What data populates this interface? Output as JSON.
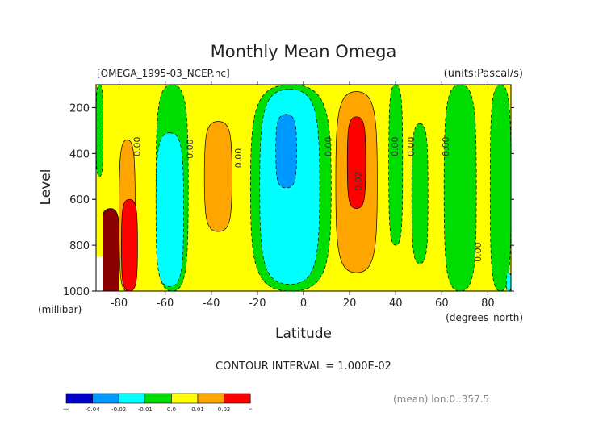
{
  "chart_data": {
    "type": "heatmap",
    "title": "Monthly Mean Omega",
    "file_label": "[OMEGA_1995-03_NCEP.nc]",
    "units_label": "(units:Pascal/s)",
    "xlabel": "Latitude",
    "x_units": "(degrees_north)",
    "ylabel": "Level",
    "y_units": "(millibar)",
    "x_ticks": [
      -80,
      -60,
      -40,
      -20,
      0,
      20,
      40,
      60,
      80
    ],
    "x_tick_labels": [
      "-80",
      "-60",
      "-40",
      "-20",
      "0",
      "20",
      "40",
      "60",
      "80"
    ],
    "y_ticks": [
      200,
      400,
      600,
      800,
      1000
    ],
    "y_tick_labels": [
      "200",
      "400",
      "600",
      "800",
      "1000"
    ],
    "xlim": [
      -90,
      90
    ],
    "ylim": [
      100,
      1000
    ],
    "y_inverted": true,
    "contour_interval_text": "CONTOUR INTERVAL = 1.000E-02",
    "mean_text": "(mean) lon:0..357.5",
    "background_level": "0.0 to 0.01",
    "regions": [
      {
        "level": "0.0 to 0.01",
        "color": "#ffff00",
        "label": "",
        "lat": [
          -90,
          90
        ],
        "lev": [
          100,
          1000
        ]
      },
      {
        "level": "-0.01 to 0.0",
        "color": "#00dd00",
        "label": "",
        "lat": [
          -90,
          -87
        ],
        "lev": [
          100,
          500
        ]
      },
      {
        "level": "0.01 to 0.02",
        "color": "#ffa500",
        "label": "",
        "lat": [
          -80,
          -73
        ],
        "lev": [
          340,
          1000
        ]
      },
      {
        "level": "0.01 to 0.02",
        "color": "#ffa500",
        "label": "",
        "lat": [
          -43,
          -31
        ],
        "lev": [
          260,
          740
        ]
      },
      {
        "level": "-0.01 to 0.0",
        "color": "#00dd00",
        "label": "",
        "lat": [
          -64,
          -50
        ],
        "lev": [
          100,
          1000
        ]
      },
      {
        "level": "-0.02 to -0.01",
        "color": "#00ffff",
        "label": "",
        "lat": [
          -64,
          -52
        ],
        "lev": [
          310,
          980
        ]
      },
      {
        "level": "-0.01 to 0.0",
        "color": "#00dd00",
        "label": "",
        "lat": [
          -23,
          12
        ],
        "lev": [
          100,
          1000
        ]
      },
      {
        "level": "-0.02 to -0.01",
        "color": "#00ffff",
        "label": "",
        "lat": [
          -19,
          7
        ],
        "lev": [
          120,
          970
        ]
      },
      {
        "level": "-0.03 to -0.02",
        "color": "#0099ff",
        "label": "",
        "lat": [
          -12,
          -3
        ],
        "lev": [
          230,
          550
        ]
      },
      {
        "level": "0.01 to 0.02",
        "color": "#ffa500",
        "label": "",
        "lat": [
          14,
          32
        ],
        "lev": [
          130,
          920
        ]
      },
      {
        "level": "0.02 to 0.03",
        "color": "#ff0000",
        "label": "0.02",
        "lat": [
          19,
          27
        ],
        "lev": [
          240,
          640
        ]
      },
      {
        "level": "-0.01 to 0.0",
        "color": "#00dd00",
        "label": "",
        "lat": [
          37,
          43
        ],
        "lev": [
          100,
          800
        ]
      },
      {
        "level": "-0.01 to 0.0",
        "color": "#00dd00",
        "label": "",
        "lat": [
          47,
          54
        ],
        "lev": [
          270,
          880
        ]
      },
      {
        "level": "-0.01 to 0.0",
        "color": "#00dd00",
        "label": "",
        "lat": [
          61,
          75
        ],
        "lev": [
          100,
          1000
        ]
      },
      {
        "level": "-0.01 to 0.0",
        "color": "#00dd00",
        "label": "",
        "lat": [
          81,
          90
        ],
        "lev": [
          100,
          1000
        ]
      },
      {
        "level": "0.02 to 0.03",
        "color": "#ff0000",
        "label": "0.02",
        "lat": [
          -79,
          -72
        ],
        "lev": [
          600,
          1000
        ]
      },
      {
        "level": "above 0.03",
        "color": "#8b0000",
        "label": "",
        "lat": [
          -87,
          -80
        ],
        "lev": [
          640,
          1000
        ]
      },
      {
        "level": "-0.02 to -0.01",
        "color": "#00ffff",
        "label": "",
        "lat": [
          88,
          90
        ],
        "lev": [
          920,
          1000
        ]
      }
    ],
    "contour_labels": [
      {
        "text": "0.00",
        "lat": -71,
        "lev": 370
      },
      {
        "text": "0.00",
        "lat": -48,
        "lev": 380
      },
      {
        "text": "0.00",
        "lat": -27,
        "lev": 420
      },
      {
        "text": "0.00",
        "lat": 12,
        "lev": 370
      },
      {
        "text": "0.02",
        "lat": 25,
        "lev": 520
      },
      {
        "text": "0.00",
        "lat": 41,
        "lev": 370
      },
      {
        "text": "0.00",
        "lat": 48,
        "lev": 370
      },
      {
        "text": "0.00",
        "lat": 63,
        "lev": 370
      },
      {
        "text": "0.00",
        "lat": 77,
        "lev": 830
      }
    ],
    "legend": {
      "colors": [
        "#0000cc",
        "#0099ff",
        "#00ffff",
        "#00dd00",
        "#ffff00",
        "#ffa500",
        "#ff0000"
      ],
      "labels": [
        "-∞",
        "-0.04",
        "-0.02",
        "-0.01",
        "0.0",
        "0.01",
        "0.02",
        "∞"
      ]
    }
  }
}
